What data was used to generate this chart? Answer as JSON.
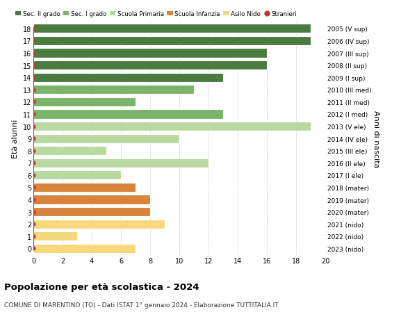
{
  "ages": [
    18,
    17,
    16,
    15,
    14,
    13,
    12,
    11,
    10,
    9,
    8,
    7,
    6,
    5,
    4,
    3,
    2,
    1,
    0
  ],
  "right_labels": [
    "2005 (V sup)",
    "2006 (IV sup)",
    "2007 (III sup)",
    "2008 (II sup)",
    "2009 (I sup)",
    "2010 (III med)",
    "2011 (II med)",
    "2012 (I med)",
    "2013 (V ele)",
    "2014 (IV ele)",
    "2015 (III ele)",
    "2016 (II ele)",
    "2017 (I ele)",
    "2018 (mater)",
    "2019 (mater)",
    "2020 (mater)",
    "2021 (nido)",
    "2022 (nido)",
    "2023 (nido)"
  ],
  "bar_values": [
    19,
    19,
    16,
    16,
    13,
    11,
    7,
    13,
    19,
    10,
    5,
    12,
    6,
    7,
    8,
    8,
    9,
    3,
    7
  ],
  "bar_colors": [
    "#4a7c40",
    "#4a7c40",
    "#4a7c40",
    "#4a7c40",
    "#4a7c40",
    "#7ab36a",
    "#7ab36a",
    "#7ab36a",
    "#b8d9a0",
    "#b8d9a0",
    "#b8d9a0",
    "#b8d9a0",
    "#b8d9a0",
    "#d9843c",
    "#d9843c",
    "#d9843c",
    "#f5d97a",
    "#f5d97a",
    "#f5d97a"
  ],
  "legend_labels": [
    "Sec. II grado",
    "Sec. I grado",
    "Scuola Primaria",
    "Scuola Infanzia",
    "Asilo Nido",
    "Stranieri"
  ],
  "legend_colors": [
    "#4a7c40",
    "#7ab36a",
    "#b8d9a0",
    "#d9843c",
    "#f5d97a",
    "#c0392b"
  ],
  "title": "Popolazione per età scolastica - 2024",
  "subtitle": "COMUNE DI MARENTINO (TO) - Dati ISTAT 1° gennaio 2024 - Elaborazione TUTTITALIA.IT",
  "ylabel_left": "Età alunni",
  "ylabel_right": "Anni di nascita",
  "xlim": [
    0,
    20
  ],
  "xticks": [
    0,
    2,
    4,
    6,
    8,
    10,
    12,
    14,
    16,
    18,
    20
  ],
  "bar_height": 0.75,
  "background_color": "#ffffff",
  "grid_color": "#cccccc",
  "stranieri_color": "#c0392b"
}
